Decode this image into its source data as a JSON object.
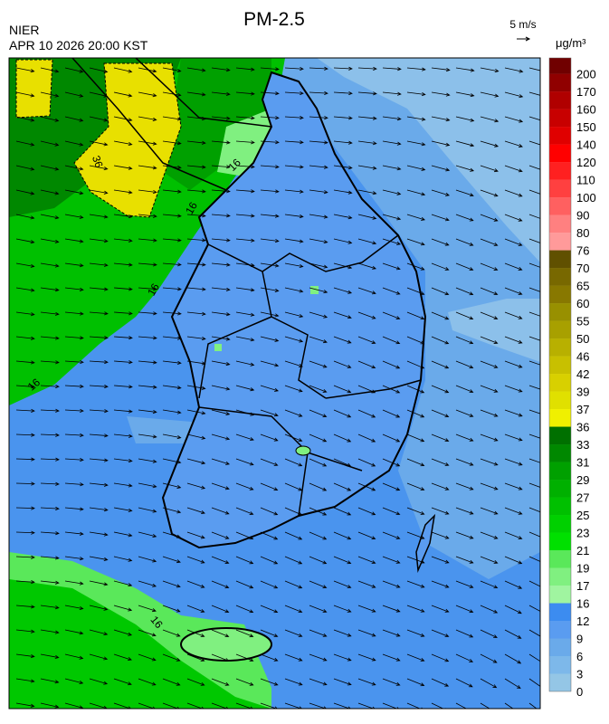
{
  "header": {
    "title": "PM-2.5",
    "agency": "NIER",
    "datetime": "APR 10 2026 20:00 KST",
    "wind_scale": "5 m/s"
  },
  "legend": {
    "unit": "μg/m³",
    "ticks": [
      0,
      3,
      6,
      9,
      12,
      16,
      17,
      19,
      21,
      23,
      25,
      27,
      29,
      31,
      33,
      36,
      37,
      39,
      42,
      46,
      50,
      55,
      60,
      65,
      70,
      76,
      80,
      90,
      100,
      110,
      120,
      140,
      150,
      160,
      170,
      200
    ],
    "colors": [
      "#94c6e6",
      "#7db8ea",
      "#6aaaea",
      "#5a9cf0",
      "#3c8cf0",
      "#a0f5a0",
      "#80f080",
      "#5ae85a",
      "#00e000",
      "#00d000",
      "#00c000",
      "#00b000",
      "#00a000",
      "#008800",
      "#007000",
      "#f0f000",
      "#e0e000",
      "#d8d000",
      "#c8c000",
      "#b8b000",
      "#a8a000",
      "#989000",
      "#887800",
      "#786800",
      "#605000",
      "#ff9a9a",
      "#ff8080",
      "#ff6060",
      "#ff4040",
      "#ff2020",
      "#ff0000",
      "#e00000",
      "#c80000",
      "#b00000",
      "#900000",
      "#700000"
    ]
  },
  "map": {
    "contour_labels": [
      "36",
      "16",
      "16",
      "16",
      "16",
      "16"
    ]
  }
}
